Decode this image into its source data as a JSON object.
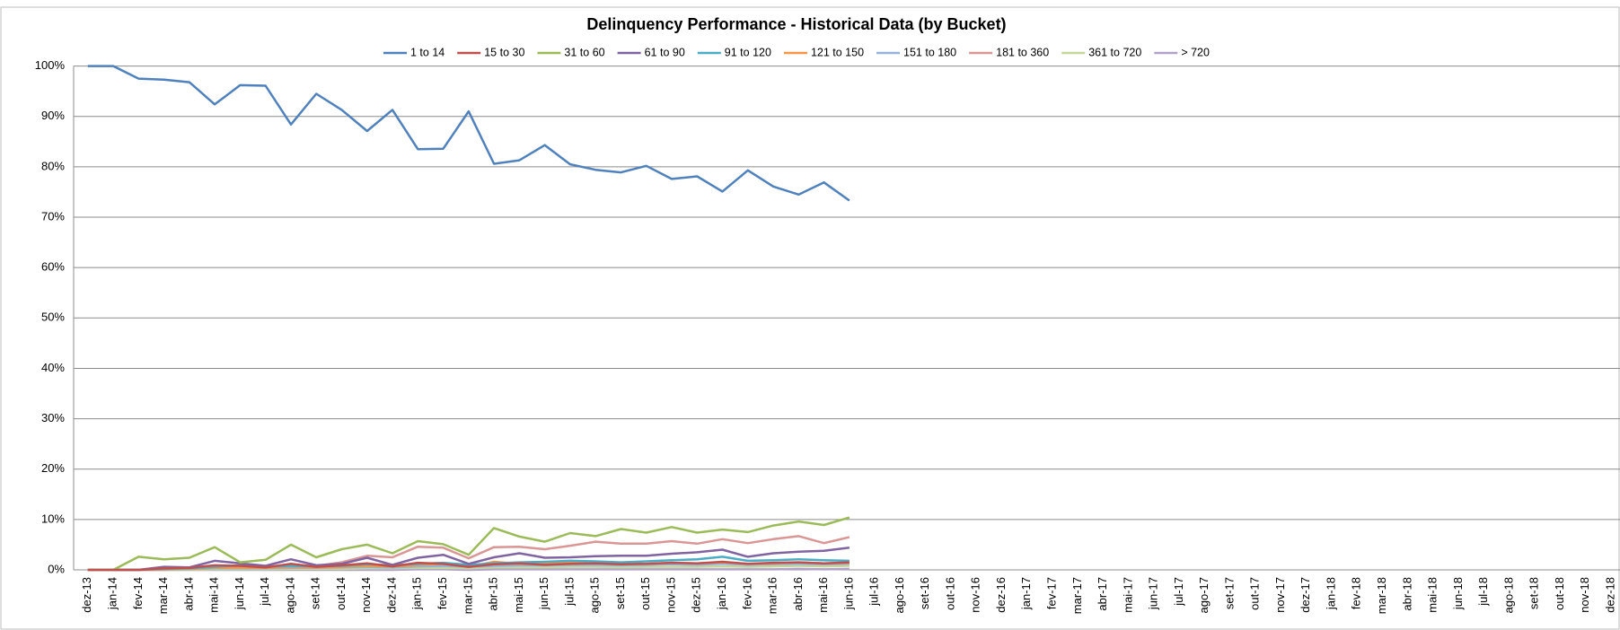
{
  "chart_data": {
    "type": "line",
    "title": "Delinquency Performance - Historical Data (by Bucket)",
    "categories": [
      "dez-13",
      "jan-14",
      "fev-14",
      "mar-14",
      "abr-14",
      "mai-14",
      "jun-14",
      "jul-14",
      "ago-14",
      "set-14",
      "out-14",
      "nov-14",
      "dez-14",
      "jan-15",
      "fev-15",
      "mar-15",
      "abr-15",
      "mai-15",
      "jun-15",
      "jul-15",
      "ago-15",
      "set-15",
      "out-15",
      "nov-15",
      "dez-15",
      "jan-16",
      "fev-16",
      "mar-16",
      "abr-16",
      "mai-16",
      "jun-16",
      "jul-16",
      "ago-16",
      "set-16",
      "out-16",
      "nov-16",
      "dez-16",
      "jan-17",
      "fev-17",
      "mar-17",
      "abr-17",
      "mai-17",
      "jun-17",
      "jul-17",
      "ago-17",
      "set-17",
      "out-17",
      "nov-17",
      "dez-17",
      "jan-18",
      "fev-18",
      "mar-18",
      "abr-18",
      "mai-18",
      "jun-18",
      "jul-18",
      "ago-18",
      "set-18",
      "out-18",
      "nov-18",
      "dez-18"
    ],
    "series": [
      {
        "name": "1 to 14",
        "color": "#4f81bd",
        "values": [
          100,
          100,
          97.5,
          97.3,
          96.8,
          92.4,
          96.2,
          96.1,
          88.4,
          94.5,
          91.3,
          87.1,
          91.3,
          83.5,
          83.6,
          91.0,
          80.6,
          81.3,
          84.3,
          80.5,
          79.4,
          78.9,
          80.2,
          77.6,
          78.1,
          75.1,
          79.3,
          76.1,
          74.5,
          76.9,
          73.3,
          null,
          null,
          null,
          null,
          null,
          null,
          null,
          null,
          null,
          null,
          null,
          null,
          null,
          null,
          null,
          null,
          null,
          null,
          null,
          null,
          null,
          null,
          null,
          null,
          null,
          null,
          null,
          null,
          null,
          null
        ]
      },
      {
        "name": "15 to 30",
        "color": "#c0504d",
        "values": [
          0,
          0,
          0,
          0.3,
          0.4,
          0.9,
          0.8,
          0.5,
          1.2,
          0.6,
          0.9,
          1.3,
          0.7,
          1.4,
          1.2,
          0.6,
          1.1,
          1.3,
          1.0,
          1.2,
          1.3,
          1.1,
          1.2,
          1.4,
          1.3,
          1.6,
          1.2,
          1.4,
          1.5,
          1.3,
          1.5,
          null,
          null,
          null,
          null,
          null,
          null,
          null,
          null,
          null,
          null,
          null,
          null,
          null,
          null,
          null,
          null,
          null,
          null,
          null,
          null,
          null,
          null,
          null,
          null,
          null,
          null,
          null,
          null,
          null,
          null
        ]
      },
      {
        "name": "31 to 60",
        "color": "#9bbb59",
        "values": [
          0,
          0,
          2.6,
          2.1,
          2.4,
          4.5,
          1.5,
          2.0,
          5.0,
          2.5,
          4.1,
          5.0,
          3.3,
          5.7,
          5.1,
          3.0,
          8.3,
          6.6,
          5.6,
          7.3,
          6.7,
          8.1,
          7.4,
          8.5,
          7.4,
          8.0,
          7.5,
          8.8,
          9.6,
          8.9,
          10.4,
          null,
          null,
          null,
          null,
          null,
          null,
          null,
          null,
          null,
          null,
          null,
          null,
          null,
          null,
          null,
          null,
          null,
          null,
          null,
          null,
          null,
          null,
          null,
          null,
          null,
          null,
          null,
          null,
          null,
          null
        ]
      },
      {
        "name": "61 to 90",
        "color": "#8064a2",
        "values": [
          0,
          0,
          0,
          0.6,
          0.5,
          1.8,
          1.3,
          0.8,
          2.1,
          0.9,
          1.2,
          2.4,
          1.0,
          2.4,
          3.0,
          1.2,
          2.5,
          3.3,
          2.4,
          2.5,
          2.7,
          2.8,
          2.8,
          3.2,
          3.5,
          4.0,
          2.6,
          3.3,
          3.6,
          3.8,
          4.4,
          null,
          null,
          null,
          null,
          null,
          null,
          null,
          null,
          null,
          null,
          null,
          null,
          null,
          null,
          null,
          null,
          null,
          null,
          null,
          null,
          null,
          null,
          null,
          null,
          null,
          null,
          null,
          null,
          null,
          null
        ]
      },
      {
        "name": "91 to 120",
        "color": "#4bacc6",
        "values": [
          0,
          0,
          0,
          0.2,
          0.3,
          0.6,
          0.9,
          0.6,
          0.8,
          0.7,
          0.8,
          1.1,
          0.9,
          1.2,
          1.4,
          1.0,
          1.3,
          1.5,
          1.6,
          1.8,
          1.7,
          1.5,
          1.7,
          1.9,
          2.1,
          2.6,
          1.8,
          1.9,
          2.1,
          1.9,
          1.8,
          null,
          null,
          null,
          null,
          null,
          null,
          null,
          null,
          null,
          null,
          null,
          null,
          null,
          null,
          null,
          null,
          null,
          null,
          null,
          null,
          null,
          null,
          null,
          null,
          null,
          null,
          null,
          null,
          null,
          null
        ]
      },
      {
        "name": "121 to 150",
        "color": "#f79646",
        "values": [
          0,
          0,
          0,
          0.1,
          0.2,
          0.4,
          0.5,
          0.4,
          0.6,
          0.5,
          0.6,
          0.8,
          0.7,
          1.0,
          1.2,
          0.6,
          1.6,
          1.2,
          1.3,
          1.5,
          1.6,
          1.3,
          1.2,
          1.4,
          1.3,
          1.5,
          1.2,
          1.3,
          1.5,
          1.3,
          1.4,
          null,
          null,
          null,
          null,
          null,
          null,
          null,
          null,
          null,
          null,
          null,
          null,
          null,
          null,
          null,
          null,
          null,
          null,
          null,
          null,
          null,
          null,
          null,
          null,
          null,
          null,
          null,
          null,
          null,
          null
        ]
      },
      {
        "name": "151 to 180",
        "color": "#95b3d7",
        "values": [
          0,
          0,
          0,
          0.1,
          0.1,
          0.3,
          0.3,
          0.3,
          0.4,
          0.4,
          0.5,
          0.6,
          0.5,
          0.7,
          0.8,
          0.6,
          0.8,
          0.9,
          0.9,
          1.0,
          1.0,
          0.9,
          1.0,
          1.1,
          1.0,
          1.2,
          1.0,
          1.1,
          1.2,
          1.1,
          1.2,
          null,
          null,
          null,
          null,
          null,
          null,
          null,
          null,
          null,
          null,
          null,
          null,
          null,
          null,
          null,
          null,
          null,
          null,
          null,
          null,
          null,
          null,
          null,
          null,
          null,
          null,
          null,
          null,
          null,
          null
        ]
      },
      {
        "name": "181 to 360",
        "color": "#d99694",
        "values": [
          0,
          0,
          0,
          0,
          0.3,
          0.5,
          0.5,
          0.5,
          1.0,
          0.8,
          1.5,
          2.8,
          2.5,
          4.6,
          4.4,
          2.3,
          4.5,
          4.6,
          4.1,
          4.8,
          5.6,
          5.2,
          5.2,
          5.7,
          5.2,
          6.1,
          5.3,
          6.1,
          6.7,
          5.3,
          6.5,
          null,
          null,
          null,
          null,
          null,
          null,
          null,
          null,
          null,
          null,
          null,
          null,
          null,
          null,
          null,
          null,
          null,
          null,
          null,
          null,
          null,
          null,
          null,
          null,
          null,
          null,
          null,
          null,
          null,
          null
        ]
      },
      {
        "name": "361 to 720",
        "color": "#c3d69b",
        "values": [
          0,
          0,
          0,
          0,
          0,
          0.1,
          0.1,
          0.1,
          0.2,
          0.2,
          0.2,
          0.3,
          0.3,
          0.4,
          0.4,
          0.3,
          0.5,
          0.5,
          0.5,
          0.6,
          0.6,
          0.5,
          0.6,
          0.6,
          0.6,
          0.7,
          0.6,
          0.7,
          0.8,
          0.7,
          0.8,
          null,
          null,
          null,
          null,
          null,
          null,
          null,
          null,
          null,
          null,
          null,
          null,
          null,
          null,
          null,
          null,
          null,
          null,
          null,
          null,
          null,
          null,
          null,
          null,
          null,
          null,
          null,
          null,
          null,
          null
        ]
      },
      {
        "name": "> 720",
        "color": "#b3a2c7",
        "values": [
          0,
          0,
          0,
          0,
          0,
          0,
          0,
          0,
          0,
          0,
          0,
          0,
          0,
          0.1,
          0.1,
          0,
          0.1,
          0.1,
          0.1,
          0.1,
          0.1,
          0.1,
          0.1,
          0.1,
          0.1,
          0.1,
          0.1,
          0.1,
          0.2,
          0.1,
          0.2,
          null,
          null,
          null,
          null,
          null,
          null,
          null,
          null,
          null,
          null,
          null,
          null,
          null,
          null,
          null,
          null,
          null,
          null,
          null,
          null,
          null,
          null,
          null,
          null,
          null,
          null,
          null,
          null,
          null,
          null
        ]
      }
    ],
    "ylim": [
      0,
      100
    ],
    "yticks": [
      {
        "value": 0,
        "label": "0%"
      },
      {
        "value": 10,
        "label": "10%"
      },
      {
        "value": 20,
        "label": "20%"
      },
      {
        "value": 30,
        "label": "30%"
      },
      {
        "value": 40,
        "label": "40%"
      },
      {
        "value": 50,
        "label": "50%"
      },
      {
        "value": 60,
        "label": "60%"
      },
      {
        "value": 70,
        "label": "70%"
      },
      {
        "value": 80,
        "label": "80%"
      },
      {
        "value": 90,
        "label": "90%"
      },
      {
        "value": 100,
        "label": "100%"
      }
    ],
    "grid": true,
    "legend": "top"
  }
}
